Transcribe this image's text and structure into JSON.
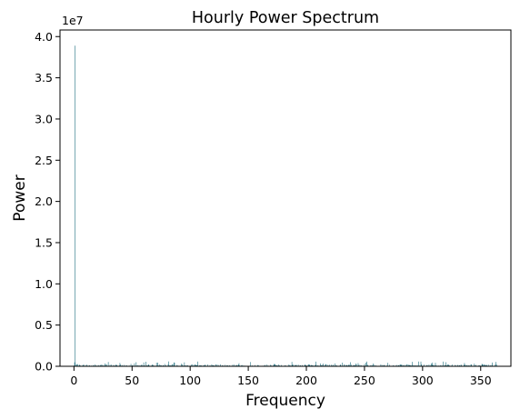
{
  "chart_data": {
    "type": "bar",
    "title": "Hourly Power Spectrum",
    "xlabel": "Frequency",
    "ylabel": "Power",
    "y_offset_label": "1e7",
    "y_scale_factor": 10000000,
    "xlim": [
      -12,
      376
    ],
    "ylim": [
      0,
      40800000
    ],
    "xticks": [
      0,
      50,
      100,
      150,
      200,
      250,
      300,
      350
    ],
    "yticks": [
      0.0,
      0.5,
      1.0,
      1.5,
      2.0,
      2.5,
      3.0,
      3.5,
      4.0
    ],
    "xtick_labels": [
      "0",
      "50",
      "100",
      "150",
      "200",
      "250",
      "300",
      "350"
    ],
    "ytick_labels": [
      "0.0",
      "0.5",
      "1.0",
      "1.5",
      "2.0",
      "2.5",
      "3.0",
      "3.5",
      "4.0"
    ],
    "bar_color": "#1f6f7f",
    "grid": false,
    "legend": "none",
    "peak": {
      "x": 1,
      "y": 38900000
    },
    "x_range": [
      0,
      365
    ],
    "noise_floor_typical": 120000,
    "noise_floor_max": 600000
  }
}
